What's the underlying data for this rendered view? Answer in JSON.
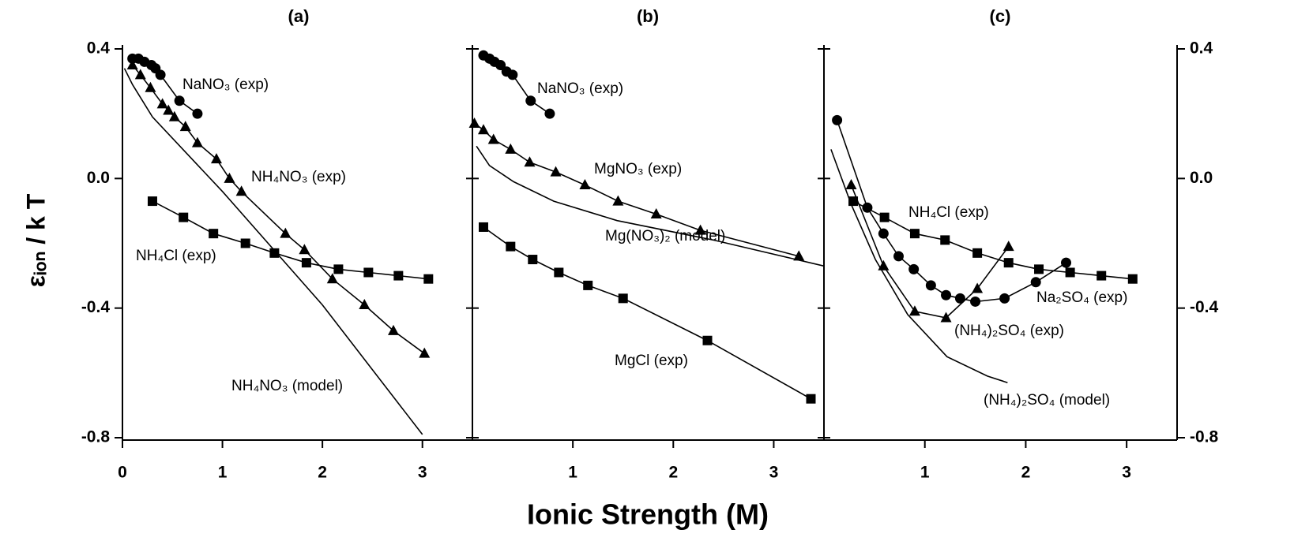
{
  "chart_data": [
    {
      "type": "line",
      "title": "(a)",
      "xlim": [
        0,
        3.5
      ],
      "xticks": [
        0,
        1,
        2,
        3
      ],
      "ylim": [
        -0.8,
        0.4
      ],
      "yticks": [
        0.4,
        {
          "value": 0,
          "label": "0.0"
        },
        -0.4,
        -0.8
      ],
      "series": [
        {
          "name": "NaNO₃ (exp)",
          "color": "#000000",
          "marker": "circle",
          "x": [
            0.1,
            0.16,
            0.22,
            0.29,
            0.33,
            0.38,
            0.57,
            0.75
          ],
          "values": [
            0.37,
            0.37,
            0.36,
            0.35,
            0.34,
            0.32,
            0.24,
            0.2
          ]
        },
        {
          "name": "NH₄NO₃ (exp)",
          "color": "#000000",
          "marker": "triangle",
          "x": [
            0.1,
            0.18,
            0.28,
            0.4,
            0.46,
            0.52,
            0.63,
            0.75,
            0.94,
            1.07,
            1.19,
            1.63,
            1.82,
            2.1,
            2.42,
            2.71,
            3.02
          ],
          "values": [
            0.35,
            0.32,
            0.28,
            0.23,
            0.21,
            0.19,
            0.16,
            0.11,
            0.06,
            0.0,
            -0.04,
            -0.17,
            -0.22,
            -0.31,
            -0.39,
            -0.47,
            -0.54
          ]
        },
        {
          "name": "NH₄Cl (exp)",
          "color": "#000000",
          "marker": "square",
          "x": [
            0.3,
            0.61,
            0.91,
            1.23,
            1.52,
            1.84,
            2.16,
            2.46,
            2.76,
            3.06
          ],
          "values": [
            -0.07,
            -0.12,
            -0.17,
            -0.2,
            -0.23,
            -0.26,
            -0.28,
            -0.29,
            -0.3,
            -0.31
          ]
        },
        {
          "name": "NH₄NO₃ (model)",
          "color": "#000000",
          "marker": "none",
          "x": [
            0.02,
            0.1,
            0.3,
            1,
            2,
            3
          ],
          "values": [
            0.34,
            0.29,
            0.19,
            -0.04,
            -0.39,
            -0.79
          ]
        }
      ]
    },
    {
      "type": "line",
      "title": "(b)",
      "xlim": [
        0,
        3.5
      ],
      "xticks": [
        1,
        2,
        3
      ],
      "ylim": [
        -0.8,
        0.4
      ],
      "yticks": [
        0.4,
        {
          "value": 0,
          "label": "0.0"
        },
        -0.4,
        -0.8
      ],
      "series": [
        {
          "name": "NaNO₃ (exp)",
          "color": "#000000",
          "marker": "circle",
          "x": [
            0.11,
            0.17,
            0.22,
            0.28,
            0.34,
            0.4,
            0.58,
            0.77
          ],
          "values": [
            0.38,
            0.37,
            0.36,
            0.35,
            0.33,
            0.32,
            0.24,
            0.2
          ]
        },
        {
          "name": "MgNO₃ (exp)",
          "color": "#000000",
          "marker": "triangle",
          "x": [
            0.02,
            0.11,
            0.21,
            0.38,
            0.57,
            0.83,
            1.12,
            1.45,
            1.83,
            2.27,
            3.25
          ],
          "values": [
            0.17,
            0.15,
            0.12,
            0.09,
            0.05,
            0.02,
            -0.02,
            -0.07,
            -0.11,
            -0.16,
            -0.24
          ]
        },
        {
          "name": "Mg(NO₃)₂ (model)",
          "color": "#000000",
          "marker": "none",
          "x": [
            0.04,
            0.17,
            0.41,
            0.81,
            1.44,
            2.4,
            3.5
          ],
          "values": [
            0.1,
            0.04,
            -0.01,
            -0.07,
            -0.13,
            -0.19,
            -0.27
          ]
        },
        {
          "name": "MgCl (exp)",
          "color": "#000000",
          "marker": "square",
          "x": [
            0.11,
            0.38,
            0.6,
            0.86,
            1.15,
            1.5,
            2.34,
            3.37
          ],
          "values": [
            -0.15,
            -0.21,
            -0.25,
            -0.29,
            -0.33,
            -0.37,
            -0.5,
            -0.68
          ]
        }
      ]
    },
    {
      "type": "line",
      "title": "(c)",
      "xlim": [
        0,
        3.5
      ],
      "xticks": [
        1,
        2,
        3
      ],
      "ylim": [
        -0.8,
        0.4
      ],
      "yticks": [
        0.4,
        {
          "value": 0,
          "label": "0.0"
        },
        -0.4,
        -0.8
      ],
      "series": [
        {
          "name": "NH₄Cl (exp)",
          "color": "#000000",
          "marker": "square",
          "x": [
            0.29,
            0.6,
            0.9,
            1.2,
            1.52,
            1.83,
            2.13,
            2.44,
            2.75,
            3.06
          ],
          "values": [
            -0.07,
            -0.12,
            -0.17,
            -0.19,
            -0.23,
            -0.26,
            -0.28,
            -0.29,
            -0.3,
            -0.31
          ]
        },
        {
          "name": "Na₂SO₄ (exp)",
          "color": "#000000",
          "marker": "circle",
          "x": [
            0.13,
            0.43,
            0.59,
            0.74,
            0.89,
            1.06,
            1.21,
            1.35,
            1.5,
            1.79,
            2.1,
            2.4
          ],
          "values": [
            0.18,
            -0.09,
            -0.17,
            -0.24,
            -0.28,
            -0.33,
            -0.36,
            -0.37,
            -0.38,
            -0.37,
            -0.32,
            -0.26
          ]
        },
        {
          "name": "(NH₄)₂SO₄ (exp)",
          "color": "#000000",
          "marker": "triangle",
          "x": [
            0.27,
            0.59,
            0.9,
            1.21,
            1.52,
            1.83
          ],
          "values": [
            -0.02,
            -0.27,
            -0.41,
            -0.43,
            -0.34,
            -0.21
          ]
        },
        {
          "name": "(NH₄)₂SO₄ (model)",
          "color": "#000000",
          "marker": "none",
          "x": [
            0.07,
            0.27,
            0.51,
            0.83,
            1.22,
            1.62,
            1.82
          ],
          "values": [
            0.09,
            -0.08,
            -0.25,
            -0.42,
            -0.55,
            -0.61,
            -0.63
          ]
        }
      ]
    }
  ],
  "x_label": "Ionic Strength (M)",
  "y_label": "εᵢₒₙ / k T"
}
